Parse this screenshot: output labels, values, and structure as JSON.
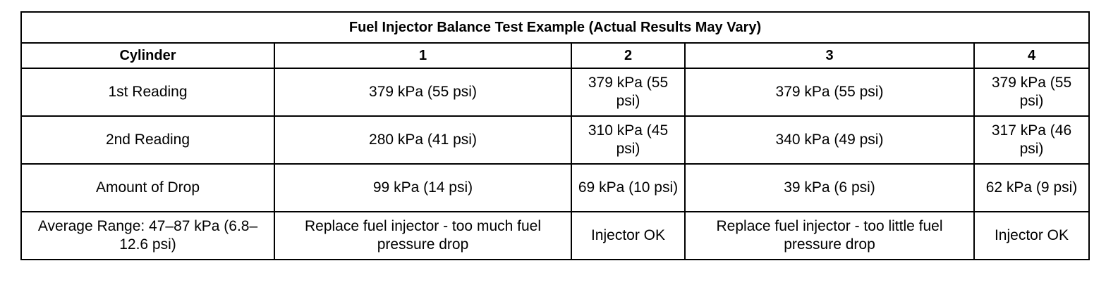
{
  "table": {
    "title": "Fuel Injector Balance Test Example (Actual Results May Vary)",
    "header": [
      "Cylinder",
      "1",
      "2",
      "3",
      "4"
    ],
    "rows": [
      [
        "1st Reading",
        "379 kPa (55 psi)",
        "379 kPa (55 psi)",
        "379 kPa (55 psi)",
        "379 kPa (55 psi)"
      ],
      [
        "2nd Reading",
        "280 kPa (41 psi)",
        "310 kPa (45 psi)",
        "340 kPa (49 psi)",
        "317 kPa (46 psi)"
      ],
      [
        "Amount of Drop",
        "99 kPa (14 psi)",
        "69 kPa (10 psi)",
        "39 kPa (6 psi)",
        "62 kPa (9 psi)"
      ],
      [
        "Average Range: 47–87 kPa (6.8–12.6 psi)",
        "Replace fuel injector - too much fuel pressure drop",
        "Injector OK",
        "Replace fuel injector - too little fuel pressure drop",
        "Injector OK"
      ]
    ]
  }
}
